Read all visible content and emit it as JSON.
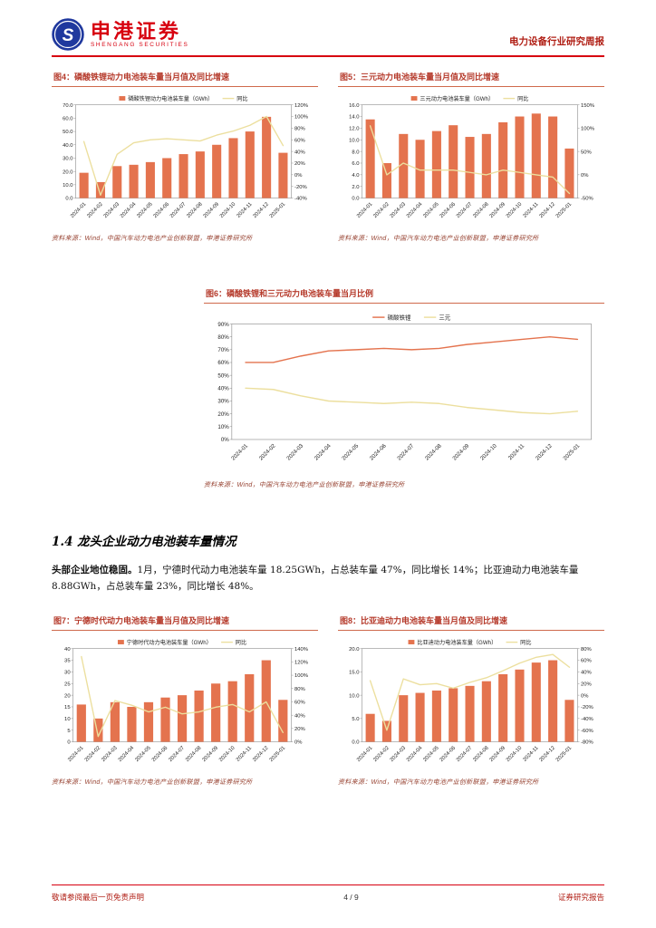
{
  "header": {
    "brand_cn": "申港证券",
    "brand_en": "SHENGANG SECURITIES",
    "report_type": "电力设备行业研究周报"
  },
  "source_note": "资料来源：Wind，中国汽车动力电池产业创新联盟，申港证券研究所",
  "section": {
    "heading": "1.4 龙头企业动力电池装车量情况",
    "para_lead": "头部企业地位稳固。",
    "para_rest": "1月，宁德时代动力电池装车量 18.25GWh，占总装车量 47%，同比增长 14%；比亚迪动力电池装车量 8.88GWh，占总装车量 23%，同比增长 48%。"
  },
  "footer": {
    "left": "敬请参阅最后一页免责声明",
    "page": "4 / 9",
    "right": "证券研究报告"
  },
  "chart_data": [
    {
      "id": "fig4",
      "type": "bar",
      "title": "图4：磷酸铁锂动力电池装车量当月值及同比增速",
      "categories": [
        "2024-01",
        "2024-02",
        "2024-03",
        "2024-04",
        "2024-05",
        "2024-06",
        "2024-07",
        "2024-08",
        "2024-09",
        "2024-10",
        "2024-11",
        "2024-12",
        "2025-01"
      ],
      "series": [
        {
          "name": "磷酸铁锂动力电池装车量（GWh）",
          "type": "bar",
          "axis": "left",
          "color": "#e4734e",
          "values": [
            19.0,
            12.0,
            24.0,
            25.0,
            27.0,
            30.0,
            33.0,
            35.0,
            40.0,
            45.0,
            50.0,
            61.0,
            34.0
          ]
        },
        {
          "name": "同比",
          "type": "line",
          "axis": "right",
          "color": "#ecdf9e",
          "values": [
            57,
            -35,
            35,
            55,
            60,
            62,
            60,
            58,
            68,
            75,
            85,
            100,
            50
          ]
        }
      ],
      "left_axis": {
        "min": 0,
        "max": 70,
        "step": 10,
        "fmt": "1dp"
      },
      "right_axis": {
        "min": -40,
        "max": 120,
        "step": 20,
        "fmt": "pct"
      }
    },
    {
      "id": "fig5",
      "type": "bar",
      "title": "图5：三元动力电池装车量当月值及同比增速",
      "categories": [
        "2024-01",
        "2024-02",
        "2024-03",
        "2024-04",
        "2024-05",
        "2024-06",
        "2024-07",
        "2024-08",
        "2024-09",
        "2024-10",
        "2024-11",
        "2024-12",
        "2025-01"
      ],
      "series": [
        {
          "name": "三元动力电池装车量（GWh）",
          "type": "bar",
          "axis": "left",
          "color": "#e4734e",
          "values": [
            13.5,
            6.0,
            11.0,
            10.0,
            11.5,
            12.5,
            10.5,
            11.0,
            13.0,
            14.0,
            14.5,
            14.0,
            8.5
          ]
        },
        {
          "name": "同比",
          "type": "line",
          "axis": "right",
          "color": "#ecdf9e",
          "values": [
            105,
            0,
            25,
            10,
            10,
            10,
            5,
            0,
            10,
            5,
            0,
            -5,
            -40
          ]
        }
      ],
      "left_axis": {
        "min": 0,
        "max": 16,
        "step": 2,
        "fmt": "1dp"
      },
      "right_axis": {
        "min": -50,
        "max": 150,
        "step": 50,
        "fmt": "pct"
      }
    },
    {
      "id": "fig6",
      "type": "line",
      "title": "图6：磷酸铁锂和三元动力电池装车量当月比例",
      "categories": [
        "2024-01",
        "2024-02",
        "2024-03",
        "2024-04",
        "2024-05",
        "2024-06",
        "2024-07",
        "2024-08",
        "2024-09",
        "2024-10",
        "2024-11",
        "2024-12",
        "2025-01"
      ],
      "series": [
        {
          "name": "磷酸铁锂",
          "type": "line",
          "axis": "left",
          "color": "#e4734e",
          "values": [
            60,
            60,
            65,
            69,
            70,
            71,
            70,
            71,
            74,
            76,
            78,
            80,
            78
          ]
        },
        {
          "name": "三元",
          "type": "line",
          "axis": "left",
          "color": "#ecdf9e",
          "values": [
            40,
            39,
            34,
            30,
            29,
            28,
            29,
            28,
            25,
            23,
            21,
            20,
            22
          ]
        }
      ],
      "left_axis": {
        "min": 0,
        "max": 90,
        "step": 10,
        "fmt": "pct"
      }
    },
    {
      "id": "fig7",
      "type": "bar",
      "title": "图7：宁德时代动力电池装车量当月值及同比增速",
      "categories": [
        "2024-01",
        "2024-02",
        "2024-03",
        "2024-04",
        "2024-05",
        "2024-06",
        "2024-07",
        "2024-08",
        "2024-09",
        "2024-10",
        "2024-11",
        "2024-12",
        "2025-01"
      ],
      "series": [
        {
          "name": "宁德时代动力电池装车量（GWh）",
          "type": "bar",
          "axis": "left",
          "color": "#e4734e",
          "values": [
            16,
            10,
            17,
            15,
            17,
            19,
            20,
            22,
            25,
            26,
            29,
            35,
            18
          ]
        },
        {
          "name": "同比",
          "type": "line",
          "axis": "right",
          "color": "#ecdf9e",
          "values": [
            128,
            8,
            62,
            55,
            45,
            52,
            42,
            45,
            52,
            56,
            45,
            60,
            14
          ]
        }
      ],
      "left_axis": {
        "min": 0,
        "max": 40,
        "step": 5,
        "fmt": "0dp"
      },
      "right_axis": {
        "min": 0,
        "max": 140,
        "step": 20,
        "fmt": "pct"
      }
    },
    {
      "id": "fig8",
      "type": "bar",
      "title": "图8：比亚迪动力电池装车量当月值及同比增速",
      "categories": [
        "2024-01",
        "2024-02",
        "2024-03",
        "2024-04",
        "2024-05",
        "2024-06",
        "2024-07",
        "2024-08",
        "2024-09",
        "2024-10",
        "2024-11",
        "2024-12",
        "2025-01"
      ],
      "series": [
        {
          "name": "比亚迪动力电池装车量（GWh）",
          "type": "bar",
          "axis": "left",
          "color": "#e4734e",
          "values": [
            6.0,
            4.5,
            10.0,
            10.5,
            11.0,
            11.5,
            12.0,
            13.0,
            14.5,
            15.5,
            17.0,
            17.5,
            9.0
          ]
        },
        {
          "name": "同比",
          "type": "line",
          "axis": "right",
          "color": "#ecdf9e",
          "values": [
            25,
            -60,
            28,
            18,
            20,
            12,
            22,
            30,
            42,
            55,
            65,
            70,
            48
          ]
        }
      ],
      "left_axis": {
        "min": 0,
        "max": 20,
        "step": 5,
        "fmt": "1dp"
      },
      "right_axis": {
        "min": -80,
        "max": 80,
        "step": 20,
        "fmt": "pct"
      }
    }
  ]
}
